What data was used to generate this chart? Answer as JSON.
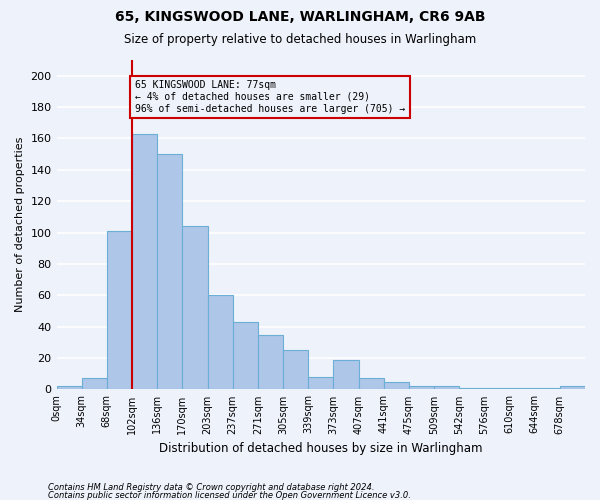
{
  "title1": "65, KINGSWOOD LANE, WARLINGHAM, CR6 9AB",
  "title2": "Size of property relative to detached houses in Warlingham",
  "xlabel": "Distribution of detached houses by size in Warlingham",
  "ylabel": "Number of detached properties",
  "footnote1": "Contains HM Land Registry data © Crown copyright and database right 2024.",
  "footnote2": "Contains public sector information licensed under the Open Government Licence v3.0.",
  "bin_labels": [
    "0sqm",
    "34sqm",
    "68sqm",
    "102sqm",
    "136sqm",
    "170sqm",
    "203sqm",
    "237sqm",
    "271sqm",
    "305sqm",
    "339sqm",
    "373sqm",
    "407sqm",
    "441sqm",
    "475sqm",
    "509sqm",
    "542sqm",
    "576sqm",
    "610sqm",
    "644sqm",
    "678sqm"
  ],
  "values": [
    2,
    7,
    101,
    163,
    150,
    104,
    60,
    43,
    35,
    25,
    8,
    19,
    7,
    5,
    2,
    2,
    1,
    1,
    1,
    1,
    2
  ],
  "bar_color": "#aec6e8",
  "bar_edge_color": "#6baed6",
  "vline_bin_index": 2,
  "vline_color": "#cc0000",
  "annotation_text": "65 KINGSWOOD LANE: 77sqm\n← 4% of detached houses are smaller (29)\n96% of semi-detached houses are larger (705) →",
  "annotation_box_color": "#cc0000",
  "ylim": [
    0,
    210
  ],
  "yticks": [
    0,
    20,
    40,
    60,
    80,
    100,
    120,
    140,
    160,
    180,
    200
  ],
  "bg_color": "#eef2fa",
  "grid_color": "#d0d8e8"
}
